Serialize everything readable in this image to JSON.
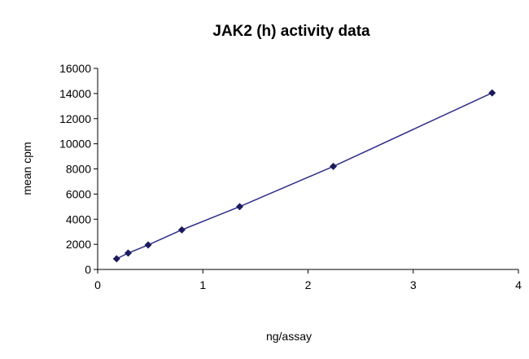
{
  "chart_data": {
    "type": "line",
    "title": "JAK2 (h) activity data",
    "xlabel": "ng/assay",
    "ylabel": "mean cpm",
    "xlim": [
      0,
      4
    ],
    "ylim": [
      0,
      16000
    ],
    "x_ticks": [
      0,
      1,
      2,
      3,
      4
    ],
    "x_tick_labels": [
      "0",
      "1",
      "2",
      "3",
      "4"
    ],
    "y_ticks": [
      0,
      2000,
      4000,
      6000,
      8000,
      10000,
      12000,
      14000,
      16000
    ],
    "y_tick_labels": [
      "0",
      "2000",
      "4000",
      "6000",
      "8000",
      "10000",
      "12000",
      "14000",
      "16000"
    ],
    "grid": false,
    "legend": "none",
    "series": [
      {
        "color": "#2e2e8a",
        "marker_color": "#1a1a5c",
        "points": [
          {
            "x": 0.18,
            "y": 850
          },
          {
            "x": 0.29,
            "y": 1300
          },
          {
            "x": 0.48,
            "y": 1950
          },
          {
            "x": 0.8,
            "y": 3150
          },
          {
            "x": 1.35,
            "y": 5000
          },
          {
            "x": 2.24,
            "y": 8200
          },
          {
            "x": 3.75,
            "y": 14050
          }
        ]
      }
    ]
  }
}
